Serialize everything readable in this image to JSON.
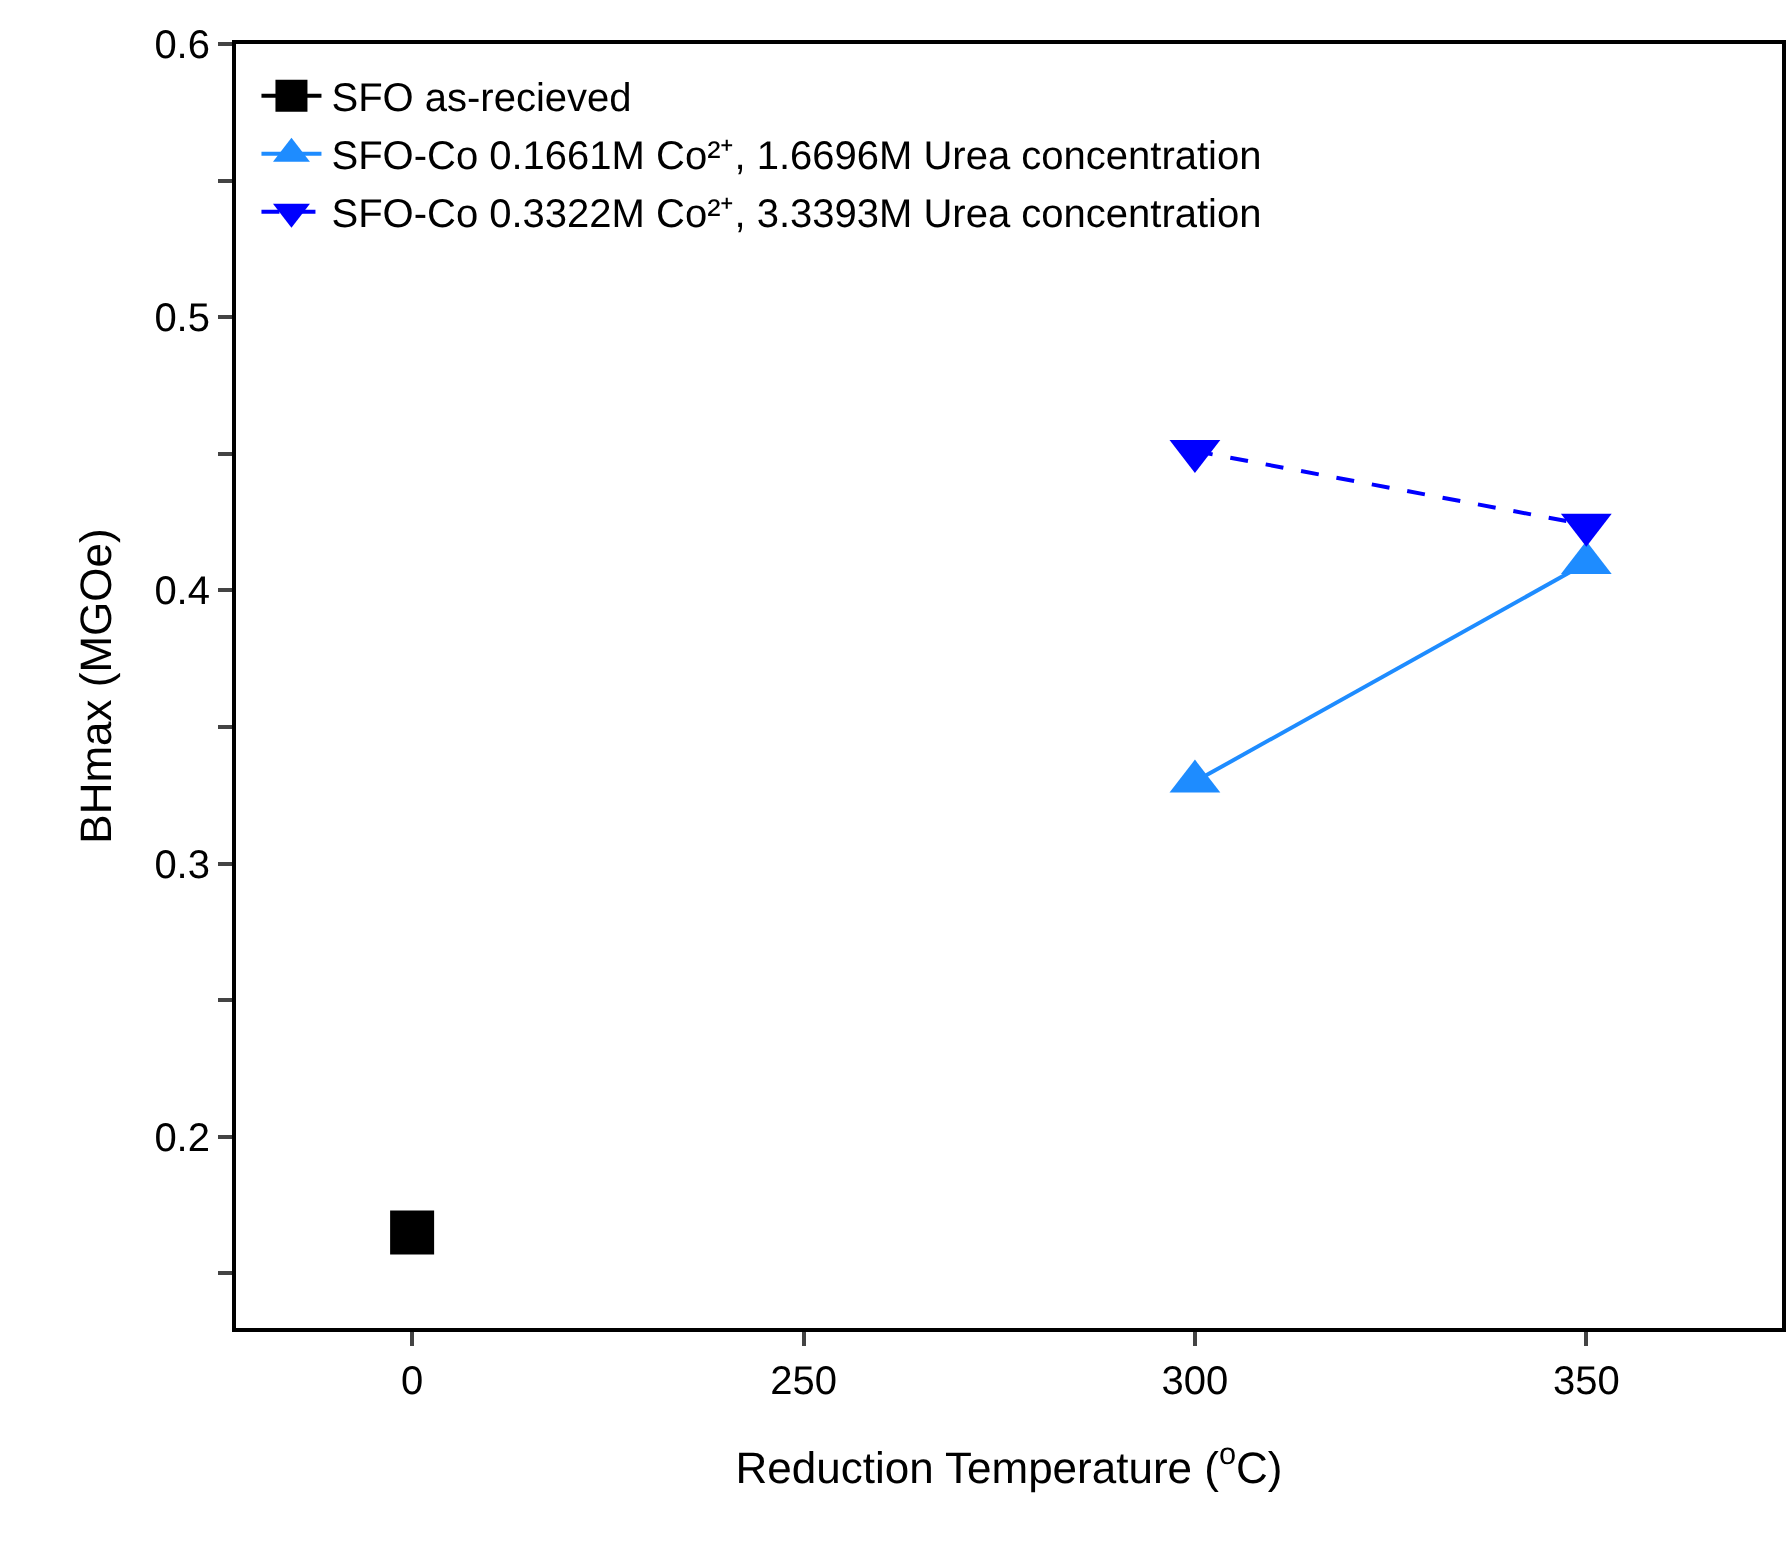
{
  "chart_data": {
    "type": "line",
    "ylabel": "BHmax (MGOe)",
    "xlabel": "Reduction Temperature ($^{o}$C)",
    "categories": [
      "0",
      "250",
      "300",
      "350"
    ],
    "ylim": [
      0.13,
      0.6
    ],
    "yticks": [
      {
        "value": 0.15,
        "label": null
      },
      0.2,
      {
        "value": 0.25,
        "label": null
      },
      0.3,
      {
        "value": 0.35,
        "label": null
      },
      0.4,
      {
        "value": 0.45,
        "label": null
      },
      0.5,
      {
        "value": 0.55,
        "label": null
      },
      0.6
    ],
    "legend": "top left",
    "series": [
      {
        "name": "SFO as-recieved",
        "color": "#000000",
        "x": [
          "0"
        ],
        "values": [
          0.165
        ],
        "marker": "square",
        "line_style": "solid"
      },
      {
        "name": "SFO-Co 0.1661M Co²⁺, 1.6696M Urea concentration",
        "color": "#1e8cff",
        "x": [
          "300",
          "350"
        ],
        "values": [
          0.33,
          0.41
        ],
        "marker": "triangle",
        "line_style": "solid"
      },
      {
        "name": "SFO-Co 0.3322M Co²⁺, 3.3393M Urea concentration",
        "color": "#0000ff",
        "x": [
          "300",
          "350"
        ],
        "values": [
          0.451,
          0.424
        ],
        "marker": "triangle-down",
        "line_style": "dashed"
      }
    ]
  }
}
